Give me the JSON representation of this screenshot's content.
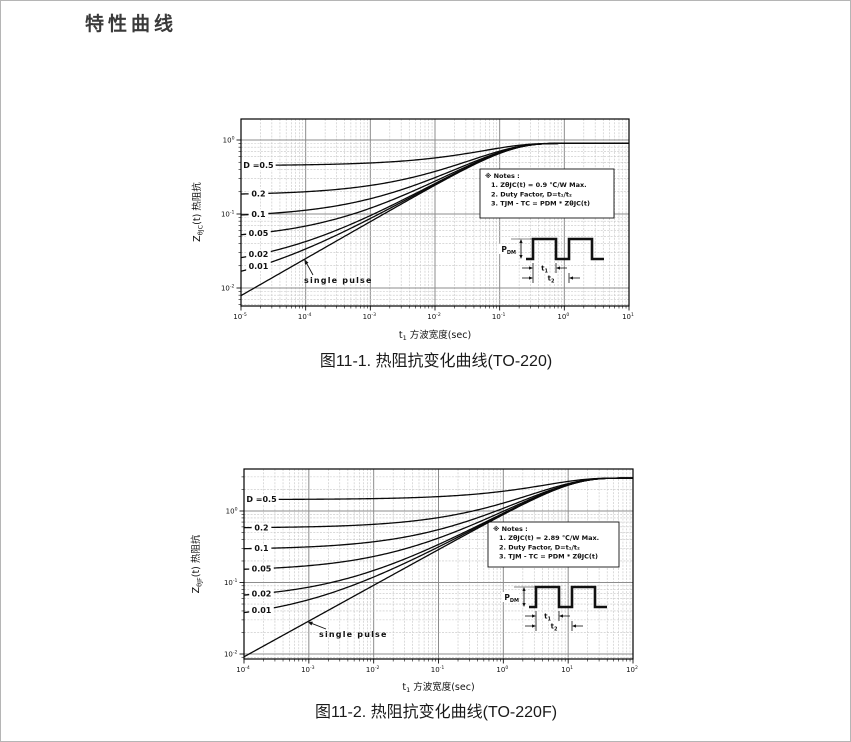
{
  "page": {
    "title": "特性曲线"
  },
  "chart_data": [
    {
      "type": "line",
      "title": "图11-1. 热阻抗变化曲线(TO-220)",
      "xlabel": "t1 方波宽度(sec)",
      "xlabel_parts": {
        "main": "t",
        "sub": "1",
        "rest": " 方波宽度(sec)"
      },
      "ylabel": "ZθJC(t) 热阻抗",
      "ylabel_parts": {
        "main": "Z",
        "sub": "θJC",
        "rest": "(t) 热阻抗"
      },
      "x_scale": "log",
      "y_scale": "log",
      "grid": true,
      "x_tick_exponents": [
        -5,
        -4,
        -3,
        -2,
        -1,
        0,
        1
      ],
      "y_tick_exponents": [
        0,
        -1,
        -2
      ],
      "x_range_sec": [
        1e-05,
        10
      ],
      "ylim": [
        0.006,
        1.9
      ],
      "duty_factors": [
        0.5,
        0.2,
        0.1,
        0.05,
        0.02,
        0.01
      ],
      "curve_labels": [
        "D =0.5",
        "0.2",
        "0.1",
        "0.05",
        "0.02",
        "0.01"
      ],
      "single_pulse_label": "single pulse",
      "model": {
        "formula": "Z(t) = Rth*(D + (1-D)*sqrt(1-exp(-t/tau)))",
        "rtheta_max_c_per_w": 0.9,
        "tau_sec": 0.13
      },
      "notes_header": "※ Notes :",
      "notes": [
        "1. ZθJC(t) = 0.9 ℃/W Max.",
        "2. Duty Factor, D=t₁/t₂",
        "3. TJM - TC = PDM * ZθJC(t)"
      ],
      "waveform_labels": {
        "power_main": "P",
        "power_sub": "DM",
        "t1_main": "t",
        "t1_sub": "1",
        "t2_main": "t",
        "t2_sub": "2"
      }
    },
    {
      "type": "line",
      "title": "图11-2. 热阻抗变化曲线(TO-220F)",
      "xlabel": "t1 方波宽度(sec)",
      "xlabel_parts": {
        "main": "t",
        "sub": "1",
        "rest": " 方波宽度(sec)"
      },
      "ylabel": "ZθJF(t) 热阻抗",
      "ylabel_parts": {
        "main": "Z",
        "sub": "θJF",
        "rest": "(t) 热阻抗"
      },
      "x_scale": "log",
      "y_scale": "log",
      "grid": true,
      "x_tick_exponents": [
        -4,
        -3,
        -2,
        -1,
        0,
        1,
        2
      ],
      "y_tick_exponents": [
        0,
        -1,
        -2
      ],
      "x_range_sec": [
        0.0001,
        100
      ],
      "ylim": [
        0.0085,
        3.9
      ],
      "duty_factors": [
        0.5,
        0.2,
        0.1,
        0.05,
        0.02,
        0.01
      ],
      "curve_labels": [
        "D =0.5",
        "0.2",
        "0.1",
        "0.05",
        "0.02",
        "0.01"
      ],
      "single_pulse_label": "single pulse",
      "model": {
        "formula": "Z(t) = Rth*(D + (1-D)*sqrt(1-exp(-t/tau)))",
        "rtheta_max_c_per_w": 2.89,
        "tau_sec": 10
      },
      "notes_header": "※ Notes :",
      "notes": [
        "1. ZθJC(t) = 2.89 ℃/W Max.",
        "2. Duty Factor, D=t₁/t₂",
        "3. TJM - TC = PDM * ZθJC(t)"
      ],
      "waveform_labels": {
        "power_main": "P",
        "power_sub": "DM",
        "t1_main": "t",
        "t1_sub": "1",
        "t2_main": "t",
        "t2_sub": "2"
      }
    }
  ]
}
